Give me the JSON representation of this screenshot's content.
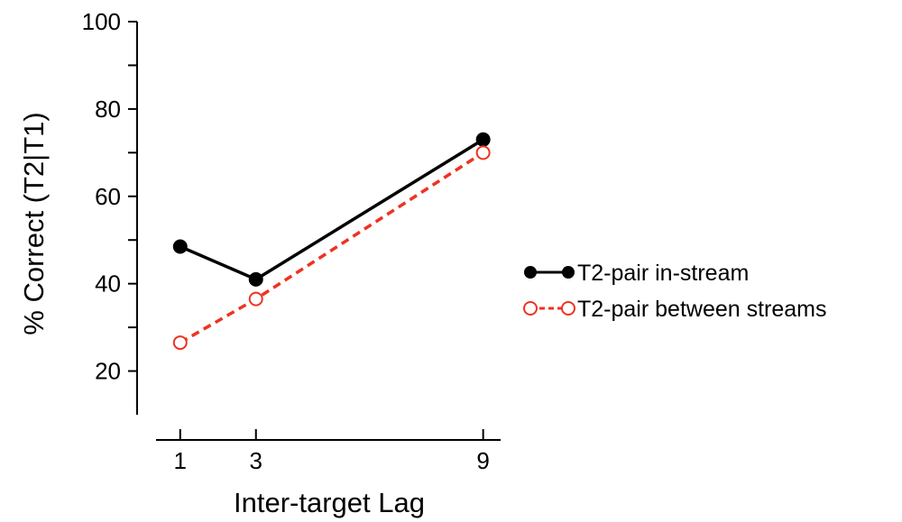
{
  "chart_data": {
    "type": "line",
    "title": "",
    "xlabel": "Inter-target Lag",
    "ylabel": "% Correct (T2|T1)",
    "x": [
      1,
      3,
      9
    ],
    "x_tick_labels": [
      "1",
      "3",
      "9"
    ],
    "xlim": [
      -0.9,
      12.2
    ],
    "ylim": [
      10,
      100
    ],
    "y_ticks": [
      20,
      30,
      40,
      50,
      60,
      70,
      80,
      90,
      100
    ],
    "y_tick_labels": [
      "20",
      "40",
      "60",
      "80",
      "100"
    ],
    "grid": false,
    "legend_position": "right",
    "series": [
      {
        "name": "T2-pair in-stream",
        "values": [
          48.5,
          41,
          73
        ],
        "color": "#000000",
        "line_style": "solid",
        "marker": "filled-circle"
      },
      {
        "name": "T2-pair between streams",
        "values": [
          26.5,
          36.5,
          70
        ],
        "color": "#ee3322",
        "line_style": "dashed",
        "marker": "open-circle"
      }
    ]
  }
}
